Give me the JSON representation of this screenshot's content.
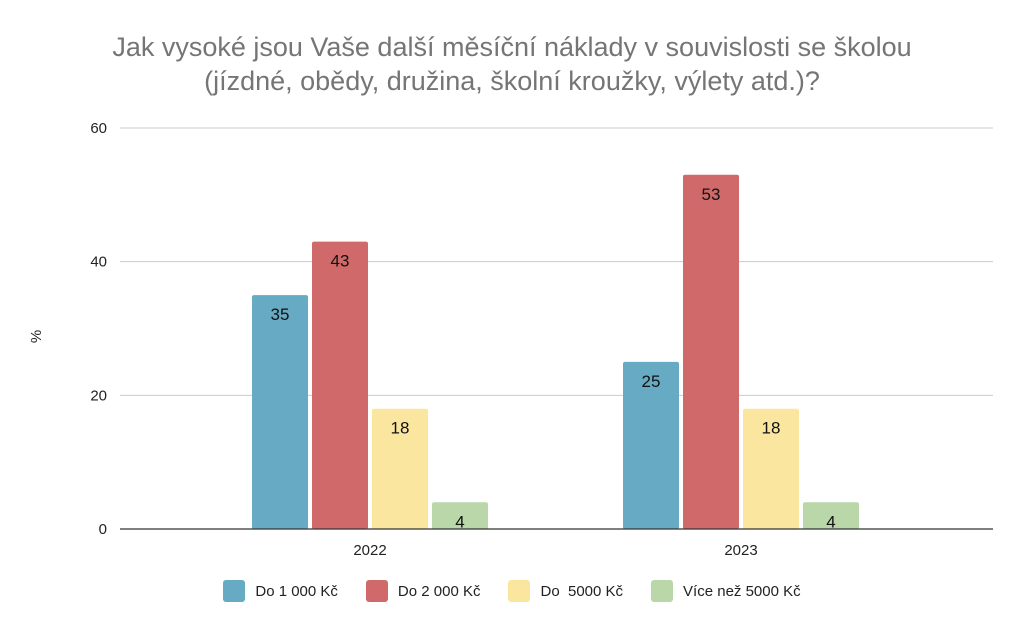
{
  "chart_data": {
    "type": "bar",
    "title_lines": [
      "Jak vysoké jsou Vaše další měsíční náklady v souvislosti se školou",
      "(jízdné, obědy, družina, školní kroužky, výlety atd.)?"
    ],
    "ylabel": "%",
    "ylim": [
      0,
      60
    ],
    "yticks": [
      0,
      20,
      40,
      60
    ],
    "grid": true,
    "legend_position": "bottom",
    "categories": [
      "2022",
      "2023"
    ],
    "series": [
      {
        "name": "Do 1 000 Kč",
        "color": "#66aac4",
        "values": [
          35,
          25
        ]
      },
      {
        "name": "Do 2 000 Kč",
        "color": "#d06a6a",
        "values": [
          43,
          53
        ]
      },
      {
        "name": "Do  5000 Kč",
        "color": "#fbe6a0",
        "values": [
          18,
          18
        ]
      },
      {
        "name": "Více než 5000 Kč",
        "color": "#b9d7a8",
        "values": [
          4,
          4
        ]
      }
    ]
  }
}
